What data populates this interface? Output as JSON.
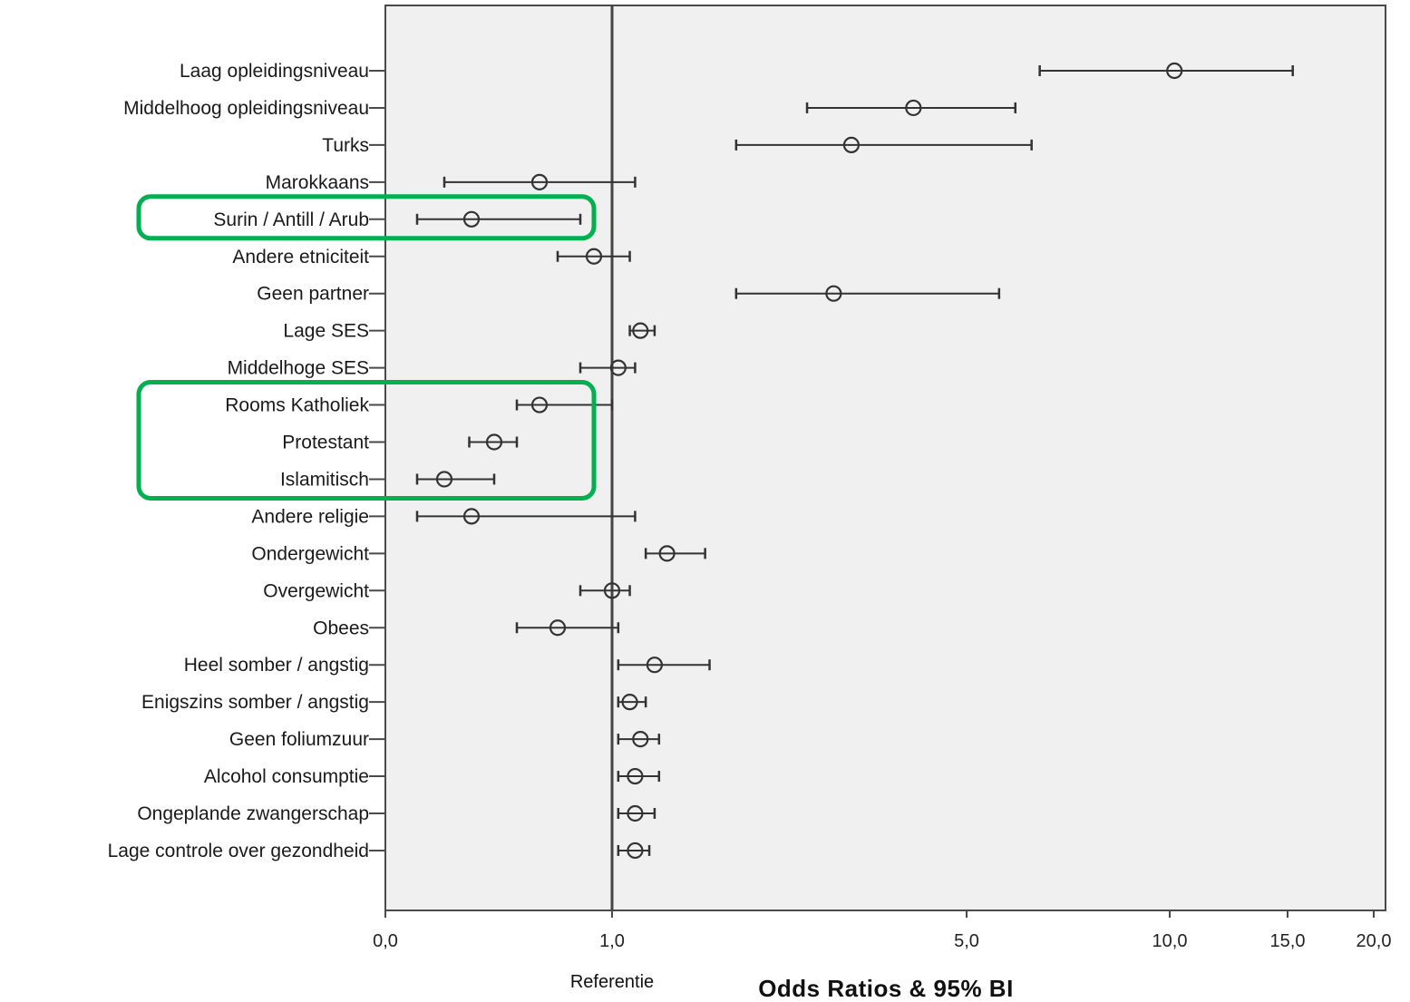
{
  "chart_data": {
    "type": "forest-plot",
    "xlabel": "Odds Ratios & 95% BI",
    "x_ticks": [
      "0,0",
      "1,0",
      "5,0",
      "10,0",
      "15,0",
      "20,0"
    ],
    "x_tick_values": [
      0,
      1,
      5,
      10,
      15,
      20
    ],
    "x_scale": "nonlinear (compressed above 1)",
    "xlim": [
      0,
      20
    ],
    "reference_value": 1,
    "reference_label": "Referentie",
    "grid": false,
    "rows": [
      {
        "label": "Laag opleidingsniveau",
        "or": 10.2,
        "lo": 6.8,
        "hi": 15.3
      },
      {
        "label": "Middelhoog opleidingsniveau",
        "or": 4.4,
        "lo": 3.2,
        "hi": 6.2
      },
      {
        "label": "Turks",
        "or": 3.7,
        "lo": 2.4,
        "hi": 6.6
      },
      {
        "label": "Marokkaans",
        "or": 0.68,
        "lo": 0.26,
        "hi": 1.26
      },
      {
        "label": "Surin / Antill / Arub",
        "or": 0.38,
        "lo": 0.14,
        "hi": 0.86
      },
      {
        "label": "Andere etniciteit",
        "or": 0.92,
        "lo": 0.76,
        "hi": 1.2
      },
      {
        "label": "Geen partner",
        "or": 3.5,
        "lo": 2.4,
        "hi": 5.8
      },
      {
        "label": "Lage SES",
        "or": 1.32,
        "lo": 1.2,
        "hi": 1.48
      },
      {
        "label": "Middelhoge SES",
        "or": 1.07,
        "lo": 0.86,
        "hi": 1.26
      },
      {
        "label": "Rooms Katholiek",
        "or": 0.68,
        "lo": 0.58,
        "hi": 1.0
      },
      {
        "label": "Protestant",
        "or": 0.48,
        "lo": 0.37,
        "hi": 0.58
      },
      {
        "label": "Islamitisch",
        "or": 0.26,
        "lo": 0.14,
        "hi": 0.48
      },
      {
        "label": "Andere religie",
        "or": 0.38,
        "lo": 0.14,
        "hi": 1.26
      },
      {
        "label": "Ondergewicht",
        "or": 1.62,
        "lo": 1.38,
        "hi": 2.05
      },
      {
        "label": "Overgewicht",
        "or": 1.0,
        "lo": 0.86,
        "hi": 1.2
      },
      {
        "label": "Obees",
        "or": 0.76,
        "lo": 0.58,
        "hi": 1.07
      },
      {
        "label": "Heel somber / angstig",
        "or": 1.48,
        "lo": 1.07,
        "hi": 2.1
      },
      {
        "label": "Enigszins somber / angstig",
        "or": 1.2,
        "lo": 1.07,
        "hi": 1.38
      },
      {
        "label": "Geen foliumzuur",
        "or": 1.32,
        "lo": 1.07,
        "hi": 1.53
      },
      {
        "label": "Alcohol consumptie",
        "or": 1.26,
        "lo": 1.07,
        "hi": 1.53
      },
      {
        "label": "Ongeplande zwangerschap",
        "or": 1.26,
        "lo": 1.07,
        "hi": 1.48
      },
      {
        "label": "Lage controle over gezondheid",
        "or": 1.26,
        "lo": 1.07,
        "hi": 1.42
      }
    ],
    "highlights": [
      {
        "rows": [
          "Surin / Antill / Arub"
        ],
        "color": "#00b050"
      },
      {
        "rows": [
          "Rooms Katholiek",
          "Protestant",
          "Islamitisch"
        ],
        "color": "#00b050"
      }
    ]
  },
  "colors": {
    "plot_background": "#f0f0f0",
    "frame": "#4a4a4a",
    "marker": "#333333",
    "highlight": "#00b050"
  }
}
